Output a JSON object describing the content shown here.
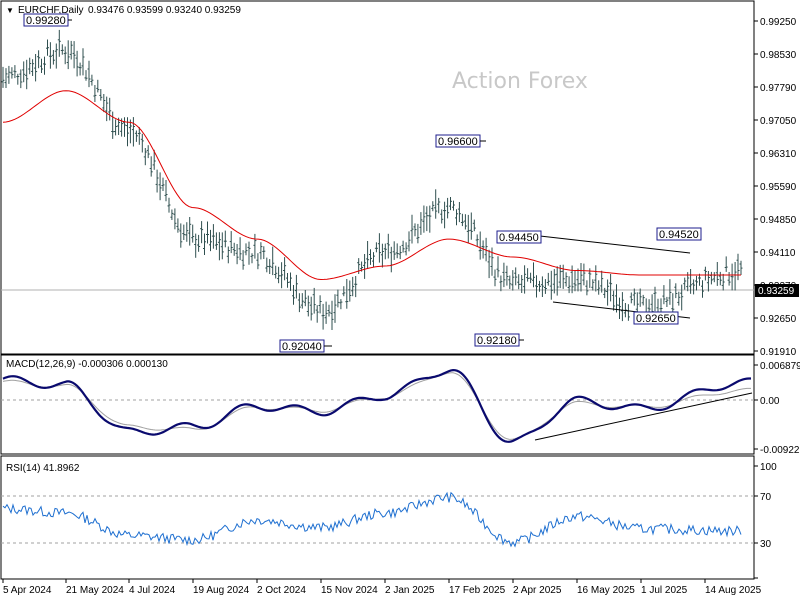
{
  "header": {
    "symbol": "EURCHF,Daily",
    "ohlc": "0.93476 0.93599 0.93240 0.93259"
  },
  "watermark": "Action Forex",
  "price_panel": {
    "y_ticks": [
      "0.99250",
      "0.98530",
      "0.97790",
      "0.97050",
      "0.96310",
      "0.95590",
      "0.94850",
      "0.94110",
      "0.93370",
      "0.92650",
      "0.91910"
    ],
    "current_price": "0.93259",
    "annotations": [
      {
        "text": "0.99280"
      },
      {
        "text": "0.96600"
      },
      {
        "text": "0.94450"
      },
      {
        "text": "0.94520"
      },
      {
        "text": "0.92040"
      },
      {
        "text": "0.92180"
      },
      {
        "text": "0.92650"
      }
    ]
  },
  "macd_panel": {
    "label": "MACD(12,26,9) -0.000306 0.000130",
    "y_ticks": [
      "0.006879",
      "0.00",
      "-0.009221"
    ]
  },
  "rsi_panel": {
    "label": "RSI(14) 41.8962",
    "y_ticks": [
      "100",
      "70",
      "30",
      "0"
    ]
  },
  "x_axis": {
    "labels": [
      "5 Apr 2024",
      "21 May 2024",
      "4 Jul 2024",
      "19 Aug 2024",
      "2 Oct 2024",
      "15 Nov 2024",
      "2 Jan 2025",
      "17 Feb 2025",
      "2 Apr 2025",
      "16 May 2025",
      "1 Jul 2025",
      "14 Aug 2025"
    ]
  },
  "colors": {
    "candles": "#2f4f4f",
    "ma": "#e00000",
    "macd": "#0a0a6e",
    "signal": "#a0a0a0",
    "rsi": "#1e6fd0",
    "grid": "#a0a0a0"
  },
  "chart_data": {
    "type": "line",
    "title": "EURCHF,Daily",
    "x": [
      "5 Apr 2024",
      "21 May 2024",
      "4 Jul 2024",
      "19 Aug 2024",
      "2 Oct 2024",
      "15 Nov 2024",
      "2 Jan 2025",
      "17 Feb 2025",
      "2 Apr 2025",
      "16 May 2025",
      "1 Jul 2025",
      "14 Aug 2025"
    ],
    "series": [
      {
        "values": [
          0.98,
          0.986,
          0.968,
          0.944,
          0.941,
          0.928,
          0.941,
          0.951,
          0.934,
          0.935,
          0.929,
          0.937
        ]
      },
      {
        "values": [
          0.97,
          0.977,
          0.97,
          0.951,
          0.944,
          0.935,
          0.938,
          0.944,
          0.94,
          0.937,
          0.936,
          0.936
        ]
      }
    ],
    "macd": {
      "series": [
        {
          "values": [
            0.004,
            0.003,
            -0.006,
            -0.005,
            -0.001,
            -0.002,
            0.001,
            0.006,
            -0.008,
            0.0,
            -0.0015,
            0.0035
          ]
        },
        {
          "values": [
            0.0036,
            0.0028,
            -0.005,
            -0.0055,
            -0.0012,
            -0.0018,
            0.0008,
            0.0055,
            -0.0075,
            -0.0005,
            -0.0012,
            0.002
          ]
        }
      ],
      "ylim": [
        -0.009221,
        0.006879
      ]
    },
    "rsi": {
      "series": [
        {
          "values": [
            62,
            58,
            38,
            34,
            52,
            45,
            58,
            72,
            32,
            55,
            44,
            41.9
          ]
        }
      ],
      "ylim": [
        0,
        100
      ]
    }
  }
}
